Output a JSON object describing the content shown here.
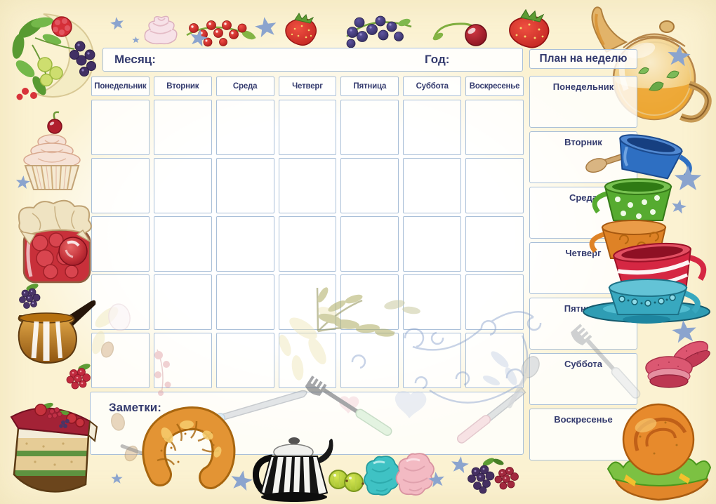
{
  "page": {
    "background_color": "#f9efc6",
    "panel_border_color": "#a9bfd8",
    "text_color": "#343b6e",
    "star_color": "#8ba4ce"
  },
  "header": {
    "month_label": "Месяц:",
    "year_label": "Год:"
  },
  "calendar": {
    "day_headers": [
      "Понедельник",
      "Вторник",
      "Среда",
      "Четверг",
      "Пятница",
      "Суббота",
      "Воскресенье"
    ],
    "rows": 5,
    "columns": 7
  },
  "week_plan": {
    "title": "План на неделю",
    "days": [
      "Понедельник",
      "Вторник",
      "Среда",
      "Четверг",
      "Пятница",
      "Суббота",
      "Воскресенье"
    ]
  },
  "notes": {
    "label": "Заметки:"
  },
  "decorations": [
    "berry-bouquet",
    "pink-meringue",
    "red-currant-sprig",
    "strawberry",
    "blueberry-sprig",
    "cherry",
    "large-strawberry",
    "glass-teapot",
    "wooden-spoon",
    "stacked-teacups",
    "pink-macarons",
    "croissant-sandwich",
    "cupcake-with-cherry",
    "berry-jam-jar",
    "blackberry",
    "amber-honey-pitcher",
    "raspberry",
    "layer-cake-slice",
    "croissant",
    "metal-kettle",
    "gooseberries",
    "teal-marshmallow",
    "pink-marshmallow",
    "blackberry-and-raspberry",
    "blue-stars",
    "faded-cutlery",
    "faded-leaves-and-swirls",
    "coffee-beans"
  ]
}
